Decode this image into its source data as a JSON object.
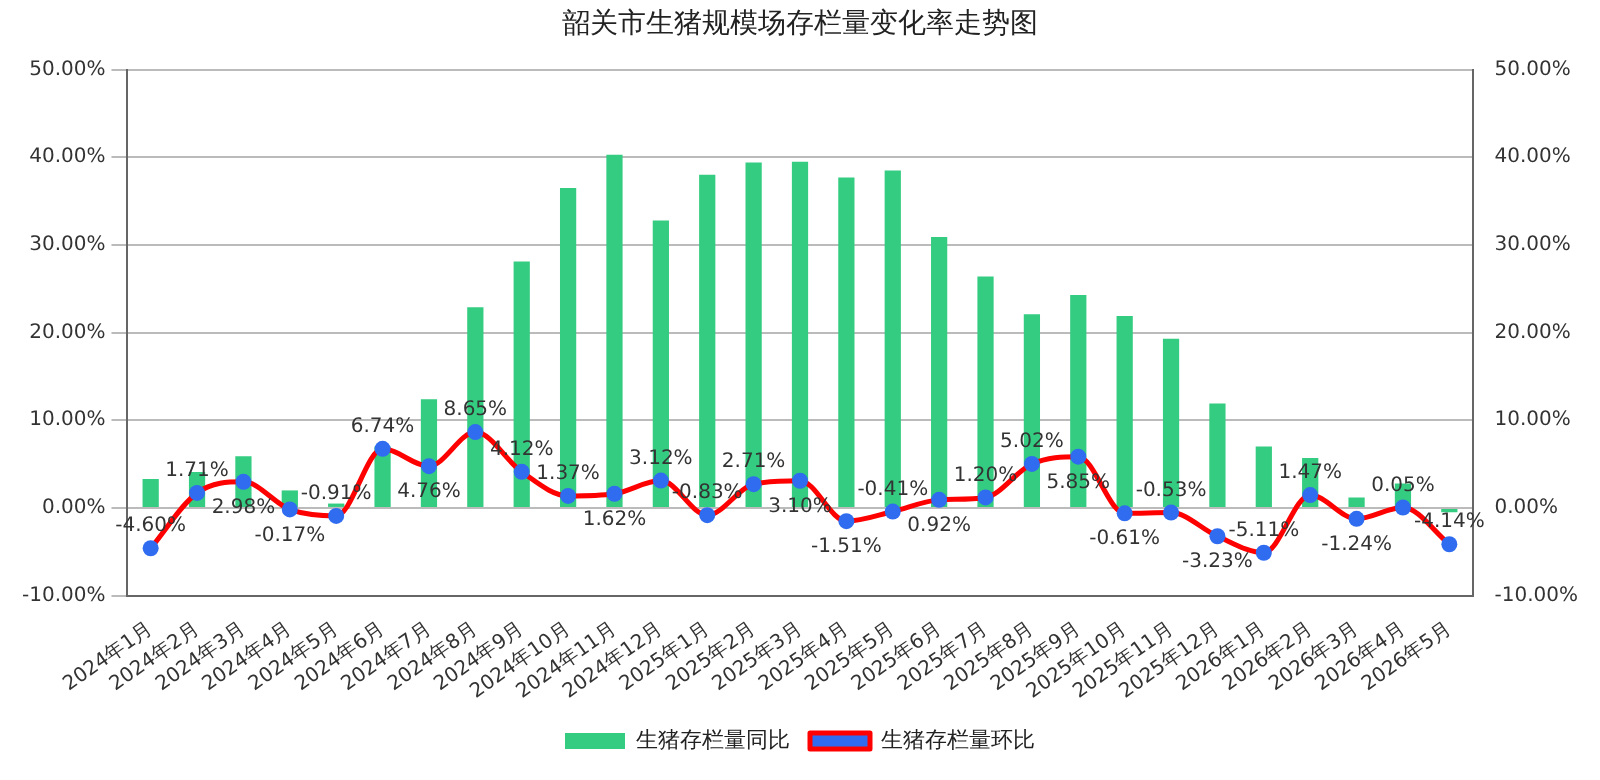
{
  "chart_data": {
    "type": "bar",
    "title": "韶关市生猪规模场存栏量变化率走势图",
    "categories": [
      "2024年1月",
      "2024年2月",
      "2024年3月",
      "2024年4月",
      "2024年5月",
      "2024年6月",
      "2024年7月",
      "2024年8月",
      "2024年9月",
      "2024年10月",
      "2024年11月",
      "2024年12月",
      "2025年1月",
      "2025年2月",
      "2025年3月",
      "2025年4月",
      "2025年5月",
      "2025年6月",
      "2025年7月",
      "2025年8月",
      "2025年9月",
      "2025年10月",
      "2025年11月",
      "2025年12月",
      "2026年1月",
      "2026年2月",
      "2026年3月",
      "2026年4月",
      "2026年5月"
    ],
    "series": [
      {
        "name": "生猪存栏量同比",
        "color": "#33cc80",
        "values": [
          3.3,
          4.1,
          5.9,
          2.0,
          0.5,
          7.0,
          12.4,
          22.9,
          28.1,
          36.5,
          40.3,
          32.8,
          38.0,
          39.4,
          39.5,
          37.7,
          38.5,
          30.9,
          26.4,
          22.1,
          24.3,
          21.9,
          19.3,
          11.9,
          7.0,
          5.7,
          1.2,
          2.8,
          -0.5
        ]
      },
      {
        "name": "生猪存栏量环比",
        "type": "line",
        "color": "#ff0000",
        "marker": "circle",
        "values": [
          -4.6,
          1.71,
          2.98,
          -0.17,
          -0.91,
          6.74,
          4.76,
          8.65,
          4.12,
          1.37,
          1.62,
          3.12,
          -0.83,
          2.71,
          3.1,
          -1.51,
          -0.41,
          0.92,
          1.2,
          5.02,
          5.85,
          -0.61,
          -0.53,
          -3.23,
          -5.11,
          1.47,
          -1.24,
          0.05,
          -4.14
        ],
        "value_labels": [
          "-4.60%",
          "1.71%",
          "2.98%",
          "-0.17%",
          "-0.91%",
          "6.74%",
          "4.76%",
          "8.65%",
          "4.12%",
          "1.37%",
          "1.62%",
          "3.12%",
          "-0.83%",
          "2.71%",
          "3.10%",
          "-1.51%",
          "-0.41%",
          "0.92%",
          "1.20%",
          "5.02%",
          "5.85%",
          "-0.61%",
          "-0.53%",
          "-3.23%",
          "-5.11%",
          "1.47%",
          "-1.24%",
          "0.05%",
          "-4.14%"
        ]
      }
    ],
    "ylim": [
      -10,
      50
    ],
    "yticks": [
      {
        "value": -10,
        "label": "-10.00%"
      },
      {
        "value": 0,
        "label": "0.00%"
      },
      {
        "value": 10,
        "label": "10.00%"
      },
      {
        "value": 20,
        "label": "20.00%"
      },
      {
        "value": 30,
        "label": "30.00%"
      },
      {
        "value": 40,
        "label": "40.00%"
      },
      {
        "value": 50,
        "label": "50.00%"
      }
    ],
    "y2lim": [
      -10,
      50
    ],
    "y2ticks": [
      {
        "value": -10,
        "label": "-10.00%"
      },
      {
        "value": 0,
        "label": "0.00%"
      },
      {
        "value": 10,
        "label": "10.00%"
      },
      {
        "value": 20,
        "label": "20.00%"
      },
      {
        "value": 30,
        "label": "30.00%"
      },
      {
        "value": 40,
        "label": "40.00%"
      },
      {
        "value": 50,
        "label": "50.00%"
      }
    ],
    "grid": "y",
    "legend": "bottom"
  }
}
